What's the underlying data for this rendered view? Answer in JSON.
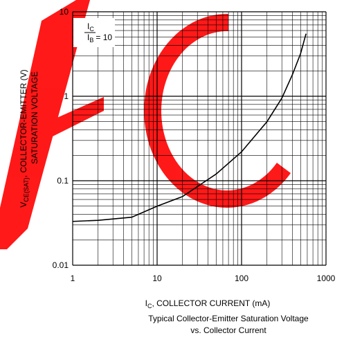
{
  "chart_data": {
    "type": "line",
    "y_label": {
      "main": "V",
      "sub": "CE(SAT)",
      "rest": ", COLLECTOR-EMITTER (V)",
      "line2": "SATURATION VOLTAGE"
    },
    "x_label": {
      "main": "I",
      "sub": "C",
      "rest": ", COLLECTOR CURRENT (mA)"
    },
    "caption": [
      "Typical Collector-Emitter Saturation Voltage",
      "vs. Collector Current"
    ],
    "annotation": {
      "num": "I",
      "num_sub": "C",
      "den": "I",
      "den_sub": "B",
      "rest": "= 10"
    },
    "x": [
      1,
      2,
      5,
      10,
      20,
      50,
      100,
      200,
      300,
      400,
      500,
      580
    ],
    "series": [
      {
        "color": "#000000",
        "values": [
          0.033,
          0.034,
          0.037,
          0.05,
          0.065,
          0.12,
          0.22,
          0.5,
          0.95,
          1.8,
          3.2,
          5.5
        ]
      }
    ],
    "xlim": [
      1,
      1000
    ],
    "ylim": [
      0.01,
      10
    ],
    "xticks": [
      1,
      10,
      100,
      1000
    ],
    "yticks": [
      0.01,
      0.1,
      1,
      10
    ],
    "log_x": true,
    "log_y": true,
    "grid": true
  }
}
